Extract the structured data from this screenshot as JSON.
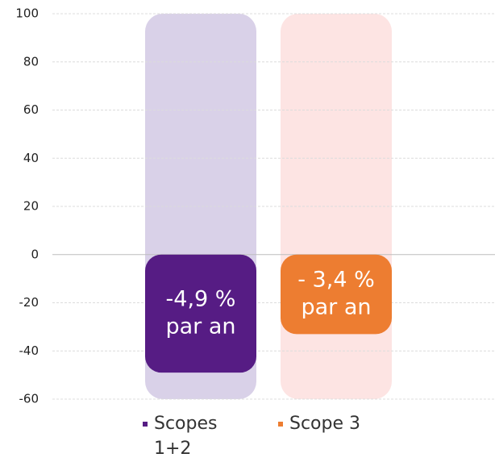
{
  "chart_data": {
    "type": "bar",
    "series": [
      {
        "name": "Scopes 1+2",
        "color": "#561c84",
        "values": [
          -49
        ]
      },
      {
        "name": "Scope 3",
        "color": "#ed7d31",
        "values": [
          -33
        ]
      }
    ],
    "annotations": [
      [
        "-4,9 %",
        "par an"
      ],
      [
        "- 3,4 %",
        "par an"
      ]
    ],
    "ylim": [
      -60,
      100
    ],
    "yticks": [
      -60,
      -40,
      -20,
      0,
      20,
      40,
      60,
      80,
      100
    ],
    "grid": true
  }
}
